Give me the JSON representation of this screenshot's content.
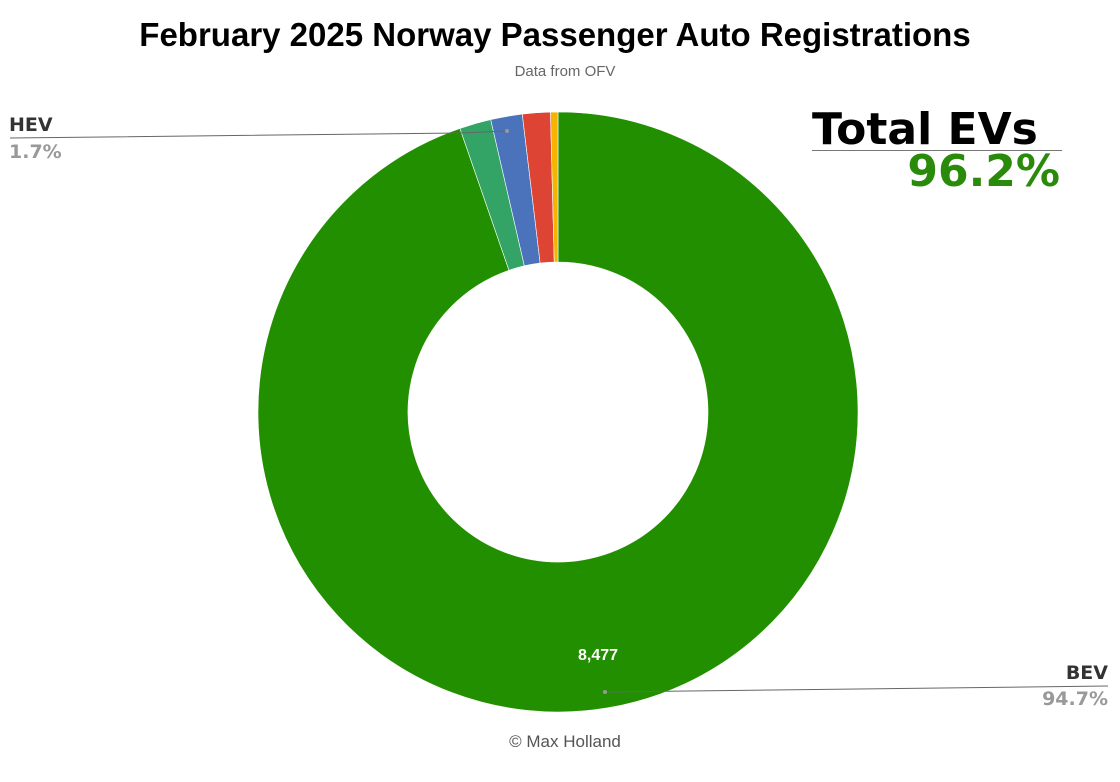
{
  "chart_data": {
    "type": "pie",
    "donut": true,
    "title": "February 2025 Norway Passenger Auto Registrations",
    "subtitle": "Data from OFV",
    "slices": [
      {
        "name": "BEV",
        "percent": 94.7,
        "value": 8477,
        "value_label": "8,477",
        "percent_label": "94.7%",
        "color": "#228f00"
      },
      {
        "name": "HEV",
        "percent": 1.7,
        "percent_label": "1.7%",
        "color": "#33a466"
      },
      {
        "percent": 1.7,
        "color": "#4a73bb"
      },
      {
        "percent": 1.5,
        "color": "#dd4433"
      },
      {
        "percent": 0.4,
        "color": "#f5b400"
      }
    ]
  },
  "annotation": {
    "label": "Total EVs",
    "value": "96.2%"
  },
  "credit": "© Max Holland"
}
